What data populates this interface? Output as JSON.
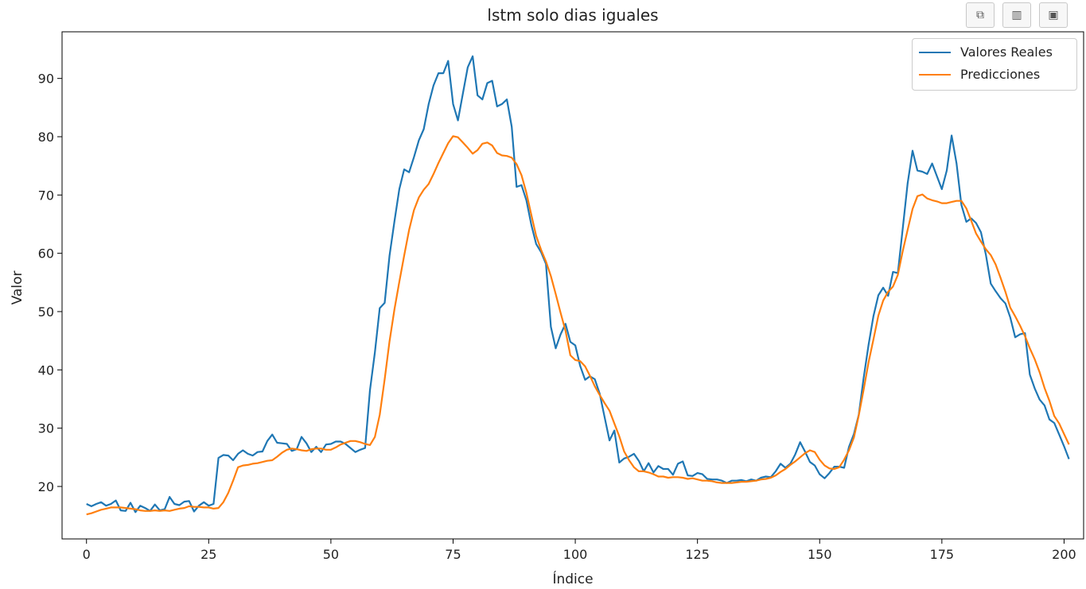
{
  "toolbar": {
    "buttons": [
      {
        "icon": "copy-icon",
        "glyph": "⧉"
      },
      {
        "icon": "bar-chart-icon",
        "glyph": "▥"
      },
      {
        "icon": "save-icon",
        "glyph": "▣"
      }
    ]
  },
  "chart_data": {
    "type": "line",
    "title": "lstm solo dias iguales",
    "xlabel": "Índice",
    "ylabel": "Valor",
    "xlim": [
      -5,
      204
    ],
    "ylim": [
      11,
      98
    ],
    "xticks": [
      0,
      25,
      50,
      75,
      100,
      125,
      150,
      175,
      200
    ],
    "yticks": [
      20,
      30,
      40,
      50,
      60,
      70,
      80,
      90
    ],
    "grid": false,
    "legend_position": "top-right",
    "series": [
      {
        "name": "Valores Reales",
        "color": "#1f77b4",
        "values": [
          17.0,
          16.6,
          17.0,
          17.3,
          16.7,
          17.0,
          17.6,
          15.9,
          15.8,
          17.2,
          15.6,
          16.7,
          16.3,
          15.8,
          16.9,
          15.9,
          16.1,
          18.2,
          17.0,
          16.8,
          17.4,
          17.5,
          15.7,
          16.7,
          17.3,
          16.7,
          17.0,
          24.9,
          25.4,
          25.3,
          24.5,
          25.6,
          26.2,
          25.6,
          25.3,
          25.9,
          26.0,
          27.8,
          28.9,
          27.5,
          27.4,
          27.3,
          26.1,
          26.4,
          28.5,
          27.4,
          25.9,
          26.8,
          25.9,
          27.2,
          27.3,
          27.7,
          27.7,
          27.3,
          26.6,
          25.9,
          26.3,
          26.6,
          36.5,
          43.0,
          50.6,
          51.5,
          59.6,
          65.5,
          71.0,
          74.4,
          73.9,
          76.5,
          79.4,
          81.3,
          85.6,
          88.8,
          90.9,
          90.9,
          93.0,
          85.6,
          82.8,
          87.4,
          91.9,
          93.8,
          87.1,
          86.4,
          89.2,
          89.6,
          85.2,
          85.6,
          86.4,
          81.7,
          71.4,
          71.7,
          69.1,
          64.9,
          61.6,
          60.2,
          58.2,
          47.4,
          43.7,
          46.1,
          47.9,
          44.8,
          44.2,
          40.7,
          38.3,
          38.9,
          38.4,
          35.9,
          31.9,
          27.9,
          29.6,
          24.1,
          24.8,
          25.1,
          25.6,
          24.4,
          22.6,
          24.0,
          22.4,
          23.5,
          23.0,
          23.0,
          22.0,
          23.9,
          24.3,
          21.9,
          21.8,
          22.3,
          22.1,
          21.3,
          21.2,
          21.2,
          21.0,
          20.6,
          21.0,
          21.0,
          21.1,
          20.9,
          21.2,
          21.0,
          21.5,
          21.7,
          21.6,
          22.6,
          23.9,
          23.2,
          23.9,
          25.5,
          27.6,
          26.0,
          24.2,
          23.6,
          22.1,
          21.4,
          22.3,
          23.4,
          23.4,
          23.2,
          26.8,
          29.0,
          32.3,
          38.6,
          44.3,
          49.2,
          52.8,
          54.1,
          52.7,
          56.8,
          56.6,
          64.3,
          72.0,
          77.6,
          74.2,
          74.0,
          73.6,
          75.4,
          73.2,
          71.0,
          74.2,
          80.2,
          75.4,
          68.3,
          65.4,
          66.0,
          65.2,
          63.6,
          59.8,
          54.8,
          53.5,
          52.3,
          51.4,
          49.0,
          45.6,
          46.1,
          46.3,
          39.2,
          36.8,
          34.9,
          33.9,
          31.5,
          30.9,
          28.9,
          26.9,
          24.7
        ]
      },
      {
        "name": "Predicciones",
        "color": "#ff7f0e",
        "values": [
          15.2,
          15.4,
          15.7,
          16.0,
          16.2,
          16.4,
          16.4,
          16.4,
          16.3,
          16.2,
          16.1,
          15.9,
          15.8,
          15.8,
          15.9,
          15.8,
          15.9,
          15.8,
          16.0,
          16.2,
          16.3,
          16.6,
          16.5,
          16.5,
          16.4,
          16.4,
          16.2,
          16.3,
          17.3,
          18.9,
          21.0,
          23.3,
          23.6,
          23.7,
          23.9,
          24.0,
          24.2,
          24.4,
          24.5,
          25.1,
          25.8,
          26.3,
          26.5,
          26.4,
          26.2,
          26.1,
          26.4,
          26.5,
          26.5,
          26.3,
          26.3,
          26.7,
          27.2,
          27.5,
          27.8,
          27.8,
          27.6,
          27.3,
          27.1,
          28.5,
          32.3,
          38.4,
          44.9,
          50.4,
          55.1,
          59.6,
          64.0,
          67.4,
          69.6,
          70.9,
          71.9,
          73.6,
          75.5,
          77.2,
          78.9,
          80.1,
          79.9,
          79.0,
          78.1,
          77.1,
          77.7,
          78.8,
          79.0,
          78.5,
          77.2,
          76.8,
          76.7,
          76.4,
          75.3,
          73.4,
          70.4,
          66.6,
          63.0,
          60.6,
          58.6,
          56.1,
          53.0,
          49.8,
          46.7,
          42.5,
          41.7,
          41.5,
          40.6,
          39.0,
          37.2,
          35.7,
          34.3,
          33.0,
          30.8,
          28.6,
          26.0,
          24.5,
          23.3,
          22.6,
          22.6,
          22.4,
          22.1,
          21.7,
          21.7,
          21.5,
          21.6,
          21.6,
          21.5,
          21.3,
          21.4,
          21.2,
          21.0,
          21.0,
          20.9,
          20.7,
          20.6,
          20.6,
          20.6,
          20.7,
          20.8,
          20.8,
          20.9,
          21.0,
          21.2,
          21.3,
          21.5,
          21.9,
          22.5,
          23.0,
          23.7,
          24.3,
          25.0,
          25.7,
          26.2,
          25.9,
          24.6,
          23.6,
          23.1,
          23.0,
          23.3,
          24.6,
          26.2,
          28.4,
          32.2,
          36.6,
          41.3,
          45.2,
          49.3,
          51.9,
          53.4,
          54.3,
          56.3,
          60.4,
          64.0,
          67.6,
          69.8,
          70.1,
          69.4,
          69.1,
          68.9,
          68.6,
          68.6,
          68.8,
          69.0,
          69.0,
          67.7,
          65.6,
          63.4,
          62.0,
          60.7,
          59.7,
          58.1,
          55.8,
          53.4,
          50.7,
          49.2,
          47.6,
          45.8,
          43.7,
          41.8,
          39.6,
          36.9,
          34.7,
          32.1,
          30.8,
          29.0,
          27.2
        ]
      }
    ]
  }
}
